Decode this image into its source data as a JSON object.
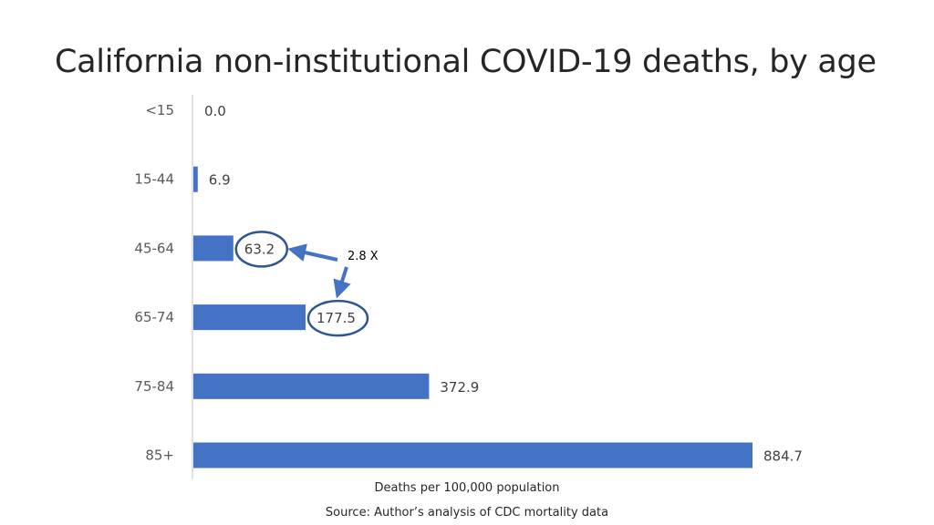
{
  "slide": {
    "title": "California non-institutional COVID-19 deaths, by age",
    "source": "Source: Author’s analysis of CDC mortality data",
    "annotation": "2.8 X"
  },
  "chart_data": {
    "type": "bar",
    "orientation": "horizontal",
    "categories": [
      "<15",
      "15-44",
      "45-64",
      "65-74",
      "75-84",
      "85+"
    ],
    "values": [
      0.0,
      6.9,
      63.2,
      177.5,
      372.9,
      884.7
    ],
    "value_labels": [
      "0.0",
      "6.9",
      "63.2",
      "177.5",
      "372.9",
      "884.7"
    ],
    "xlabel": "Deaths per 100,000 population",
    "ylabel": "",
    "xlim": [
      0,
      884.7
    ],
    "grid": false,
    "bar_color": "#4472C4",
    "highlight_color": "#2F5597",
    "highlighted": [
      "45-64",
      "65-74"
    ]
  }
}
